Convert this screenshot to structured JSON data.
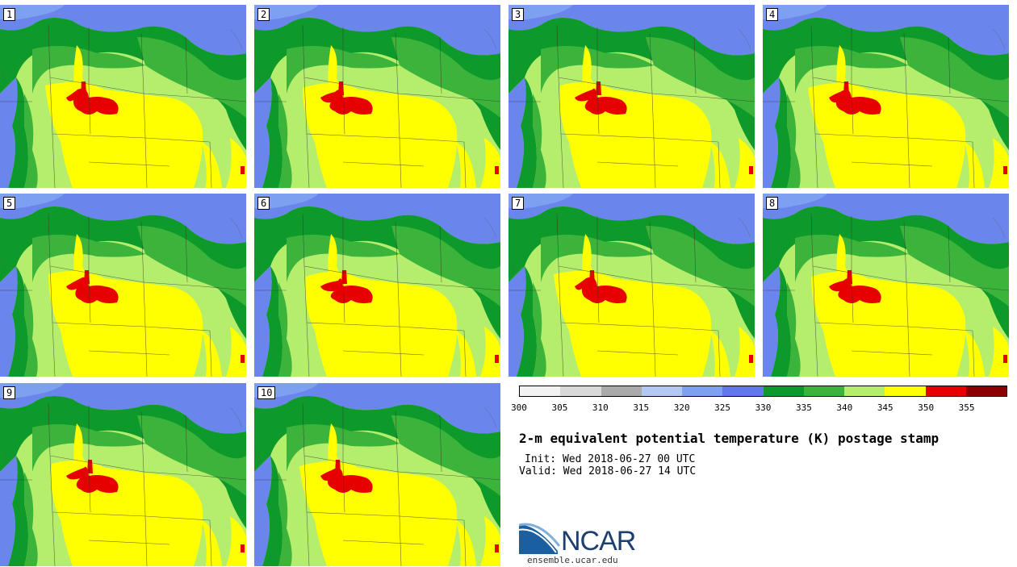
{
  "panels": [
    "1",
    "2",
    "3",
    "4",
    "5",
    "6",
    "7",
    "8",
    "9",
    "10"
  ],
  "colorbar": {
    "colors": [
      "#f2f2f2",
      "#d9d9d9",
      "#aaaaaa",
      "#b4c8f5",
      "#7ea0f0",
      "#6278ea",
      "#0e9a2a",
      "#3cb43c",
      "#b5ee6c",
      "#ffff00",
      "#e60000",
      "#8b0000"
    ],
    "ticks": [
      "300",
      "305",
      "310",
      "315",
      "320",
      "325",
      "330",
      "335",
      "340",
      "345",
      "350",
      "355"
    ]
  },
  "title": "2-m equivalent potential temperature (K) postage stamp",
  "init": "Init: Wed 2018-06-27 00 UTC",
  "valid": "Valid: Wed 2018-06-27 14 UTC",
  "logo": {
    "name": "NCAR",
    "url": "ensemble.ucar.edu"
  }
}
